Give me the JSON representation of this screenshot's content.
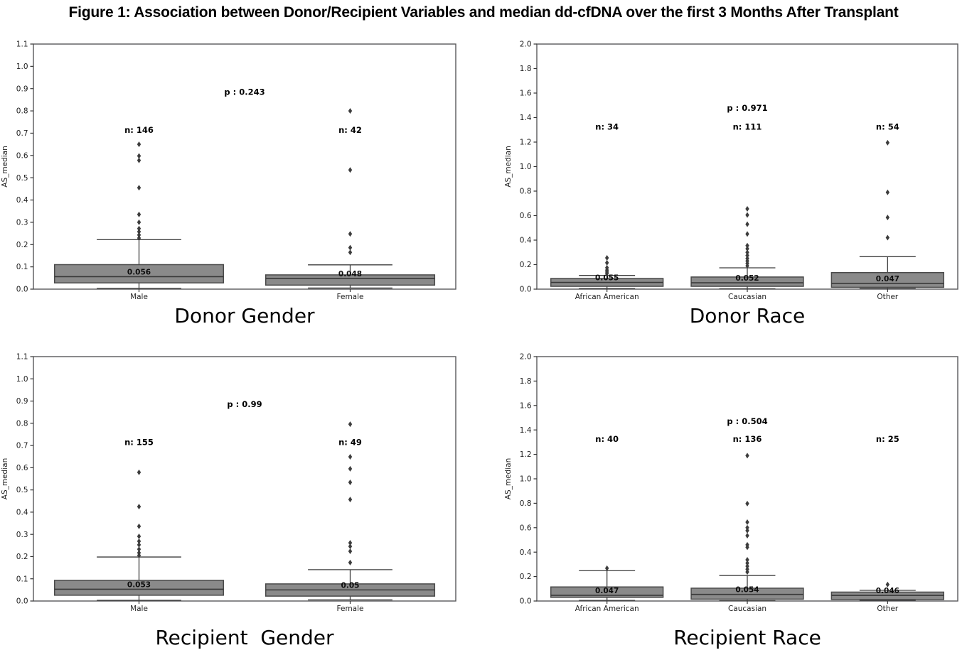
{
  "figure": {
    "title": "Figure 1: Association between Donor/Recipient Variables and median dd-cfDNA over the first 3 Months After Transplant"
  },
  "colors": {
    "box_fill": "#8a8a8a",
    "box_edge": "#4a4a4a",
    "whisker": "#3f3f3f",
    "median_line": "#383838",
    "outlier": "#3d3d3d",
    "frame": "#58585a",
    "tick_text": "#1f1f1f",
    "label_text": "#000000"
  },
  "chart_data": [
    {
      "type": "box",
      "xlabel": "Donor Gender",
      "ylabel": "AS_median",
      "ylim": [
        0.0,
        1.1
      ],
      "grid": false,
      "ytick_values": [
        0.0,
        0.1,
        0.2,
        0.3,
        0.4,
        0.5,
        0.6,
        0.7,
        0.8,
        0.9,
        1.0,
        1.1
      ],
      "ytick_labels": [
        "0.0",
        "0.1",
        "0.2",
        "0.3",
        "0.4",
        "0.5",
        "0.6",
        "0.7",
        "0.8",
        "0.9",
        "1.0",
        "1.1"
      ],
      "p_label": "p : 0.243",
      "p_y": 0.885,
      "n_label_y": 0.715,
      "groups": [
        {
          "label": "Male",
          "n_label": "n: 146",
          "median": 0.056,
          "median_label": "0.056",
          "q1": 0.028,
          "q3": 0.11,
          "whisker_low": 0.003,
          "whisker_high": 0.222,
          "outliers": [
            0.65,
            0.598,
            0.578,
            0.455,
            0.335,
            0.3,
            0.272,
            0.258,
            0.243,
            0.229
          ]
        },
        {
          "label": "Female",
          "n_label": "n: 42",
          "median": 0.048,
          "median_label": "0.048",
          "q1": 0.018,
          "q3": 0.064,
          "whisker_low": 0.005,
          "whisker_high": 0.109,
          "outliers": [
            0.8,
            0.535,
            0.248,
            0.186,
            0.165
          ]
        }
      ]
    },
    {
      "type": "box",
      "xlabel": "Donor Race",
      "ylabel": "AS_median",
      "ylim": [
        0.0,
        2.0
      ],
      "grid": false,
      "ytick_values": [
        0.0,
        0.2,
        0.4,
        0.6,
        0.8,
        1.0,
        1.2,
        1.4,
        1.6,
        1.8,
        2.0
      ],
      "ytick_labels": [
        "0.0",
        "0.2",
        "0.4",
        "0.6",
        "0.8",
        "1.0",
        "1.2",
        "1.4",
        "1.6",
        "1.8",
        "2.0"
      ],
      "p_label": "p : 0.971",
      "p_y": 1.477,
      "n_label_y": 1.325,
      "groups": [
        {
          "label": "African American",
          "n_label": "n: 34",
          "median": 0.055,
          "median_label": "0.055",
          "q1": 0.023,
          "q3": 0.087,
          "whisker_low": 0.005,
          "whisker_high": 0.112,
          "outliers": [
            0.255,
            0.215,
            0.175,
            0.155,
            0.14,
            0.128
          ]
        },
        {
          "label": "Caucasian",
          "n_label": "n: 111",
          "median": 0.052,
          "median_label": "0.052",
          "q1": 0.023,
          "q3": 0.099,
          "whisker_low": 0.003,
          "whisker_high": 0.174,
          "outliers": [
            0.655,
            0.605,
            0.53,
            0.45,
            0.355,
            0.33,
            0.3,
            0.275,
            0.25,
            0.23,
            0.21,
            0.19
          ]
        },
        {
          "label": "Other",
          "n_label": "n: 54",
          "median": 0.047,
          "median_label": "0.047",
          "q1": 0.015,
          "q3": 0.135,
          "whisker_low": 0.005,
          "whisker_high": 0.265,
          "outliers": [
            1.195,
            0.79,
            0.585,
            0.42
          ]
        }
      ]
    },
    {
      "type": "box",
      "xlabel": "Recipient  Gender",
      "ylabel": "AS_median",
      "ylim": [
        0.0,
        1.1
      ],
      "grid": false,
      "ytick_values": [
        0.0,
        0.1,
        0.2,
        0.3,
        0.4,
        0.5,
        0.6,
        0.7,
        0.8,
        0.9,
        1.0,
        1.1
      ],
      "ytick_labels": [
        "0.0",
        "0.1",
        "0.2",
        "0.3",
        "0.4",
        "0.5",
        "0.6",
        "0.7",
        "0.8",
        "0.9",
        "1.0",
        "1.1"
      ],
      "p_label": "p : 0.99",
      "p_y": 0.885,
      "n_label_y": 0.715,
      "groups": [
        {
          "label": "Male",
          "n_label": "n: 155",
          "median": 0.053,
          "median_label": "0.053",
          "q1": 0.026,
          "q3": 0.093,
          "whisker_low": 0.003,
          "whisker_high": 0.198,
          "outliers": [
            0.579,
            0.425,
            0.336,
            0.291,
            0.269,
            0.253,
            0.233,
            0.217,
            0.205
          ]
        },
        {
          "label": "Female",
          "n_label": "n: 49",
          "median": 0.05,
          "median_label": "0.05",
          "q1": 0.022,
          "q3": 0.077,
          "whisker_low": 0.005,
          "whisker_high": 0.141,
          "outliers": [
            0.796,
            0.649,
            0.595,
            0.534,
            0.457,
            0.262,
            0.246,
            0.224,
            0.173
          ]
        }
      ]
    },
    {
      "type": "box",
      "xlabel": "Recipient Race",
      "ylabel": "AS_median",
      "ylim": [
        0.0,
        2.0
      ],
      "grid": false,
      "ytick_values": [
        0.0,
        0.2,
        0.4,
        0.6,
        0.8,
        1.0,
        1.2,
        1.4,
        1.6,
        1.8,
        2.0
      ],
      "ytick_labels": [
        "0.0",
        "0.2",
        "0.4",
        "0.6",
        "0.8",
        "1.0",
        "1.2",
        "1.4",
        "1.6",
        "1.8",
        "2.0"
      ],
      "p_label": "p : 0.504",
      "p_y": 1.471,
      "n_label_y": 1.325,
      "groups": [
        {
          "label": "African American",
          "n_label": "n: 40",
          "median": 0.047,
          "median_label": "0.047",
          "q1": 0.03,
          "q3": 0.115,
          "whisker_low": 0.005,
          "whisker_high": 0.248,
          "outliers": [
            0.268
          ]
        },
        {
          "label": "Caucasian",
          "n_label": "n: 136",
          "median": 0.054,
          "median_label": "0.054",
          "q1": 0.015,
          "q3": 0.105,
          "whisker_low": 0.003,
          "whisker_high": 0.209,
          "outliers": [
            1.19,
            0.797,
            0.645,
            0.6,
            0.576,
            0.535,
            0.46,
            0.44,
            0.337,
            0.31,
            0.285,
            0.26,
            0.238
          ]
        },
        {
          "label": "Other",
          "n_label": "n: 25",
          "median": 0.046,
          "median_label": "0.046",
          "q1": 0.012,
          "q3": 0.073,
          "whisker_low": 0.005,
          "whisker_high": 0.087,
          "outliers": [
            0.135
          ]
        }
      ]
    }
  ]
}
